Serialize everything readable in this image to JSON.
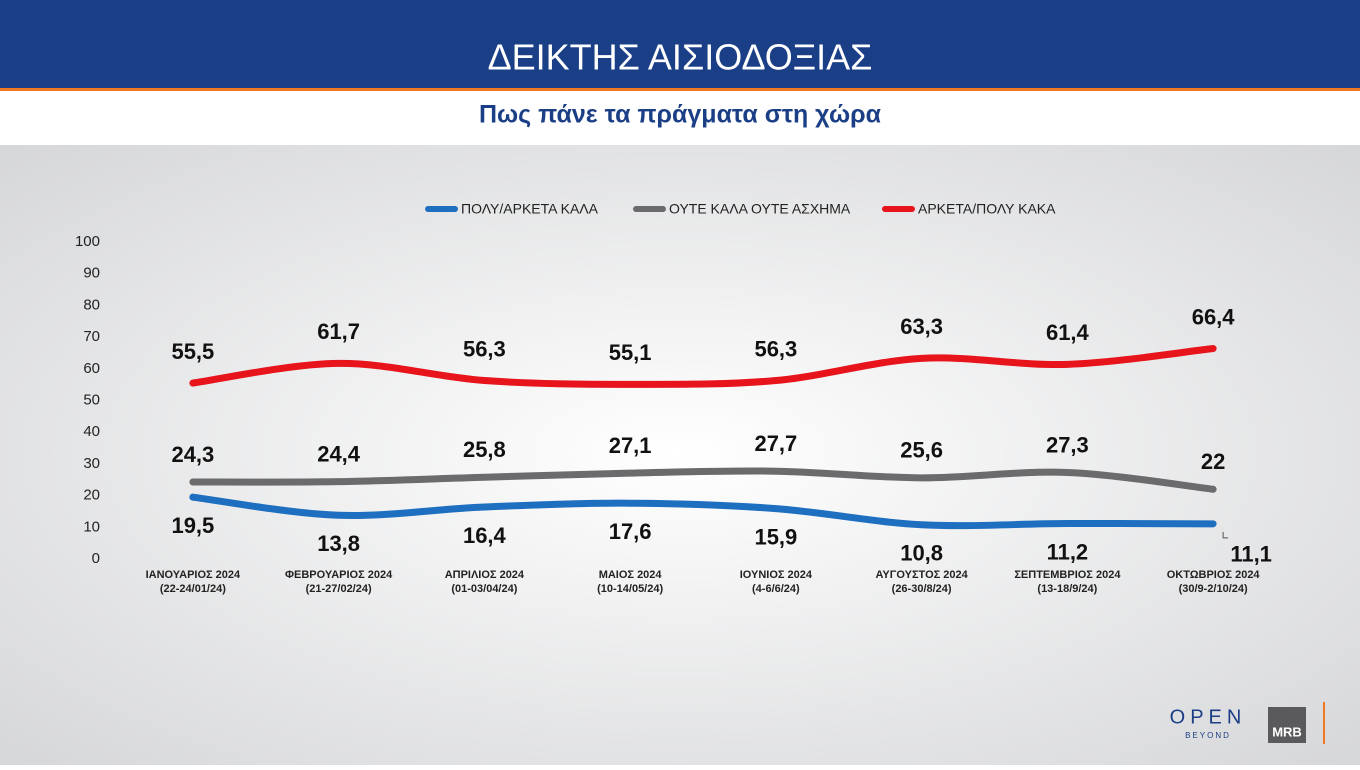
{
  "header": {
    "title": "ΔΕΙΚΤΗΣ ΑΙΣΙΟΔΟΞΙΑΣ",
    "subtitle": "Πως πάνε τα πράγματα στη χώρα"
  },
  "chart_data": {
    "type": "line",
    "categories": [
      "ΙΑΝΟΥΑΡΙΟΣ 2024",
      "ΦΕΒΡΟΥΑΡΙΟΣ 2024",
      "ΑΠΡΙΛΙΟΣ 2024",
      "ΜΑΙΟΣ 2024",
      "ΙΟΥΝΙΟΣ 2024",
      "ΑΥΓΟΥΣΤΟΣ 2024",
      "ΣΕΠΤΕΜΒΡΙΟΣ 2024",
      "ΟΚΤΩΒΡΙΟΣ 2024"
    ],
    "category_periods": [
      "(22-24/01/24)",
      "(21-27/02/24)",
      "(01-03/04/24)",
      "(10-14/05/24)",
      "(4-6/6/24)",
      "(26-30/8/24)",
      "(13-18/9/24)",
      "(30/9-2/10/24)"
    ],
    "series": [
      {
        "name": "ΠΟΛΥ/ΑΡΚΕΤΑ ΚΑΛΑ",
        "color": "#1f6fc0",
        "values": [
          19.5,
          13.8,
          16.4,
          17.6,
          15.9,
          10.8,
          11.2,
          11.1
        ],
        "value_labels": [
          "19,5",
          "13,8",
          "16,4",
          "17,6",
          "15,9",
          "10,8",
          "11,2",
          "11,1"
        ]
      },
      {
        "name": "ΟΥΤΕ ΚΑΛΑ ΟΥΤΕ ΑΣΧΗΜΑ",
        "color": "#6b6b6d",
        "values": [
          24.3,
          24.4,
          25.8,
          27.1,
          27.7,
          25.6,
          27.3,
          22
        ],
        "value_labels": [
          "24,3",
          "24,4",
          "25,8",
          "27,1",
          "27,7",
          "25,6",
          "27,3",
          "22"
        ]
      },
      {
        "name": "ΑΡΚΕΤΑ/ΠΟΛΥ ΚΑΚΑ",
        "color": "#e8141b",
        "values": [
          55.5,
          61.7,
          56.3,
          55.1,
          56.3,
          63.3,
          61.4,
          66.4
        ],
        "value_labels": [
          "55,5",
          "61,7",
          "56,3",
          "55,1",
          "56,3",
          "63,3",
          "61,4",
          "66,4"
        ]
      }
    ],
    "ylim": [
      0,
      100
    ],
    "yticks": [
      0,
      10,
      20,
      30,
      40,
      50,
      60,
      70,
      80,
      90,
      100
    ],
    "grid": false,
    "legend": "top"
  },
  "branding": {
    "channel": "OPEN",
    "tagline": "BEYOND",
    "pollster": "MRB"
  }
}
